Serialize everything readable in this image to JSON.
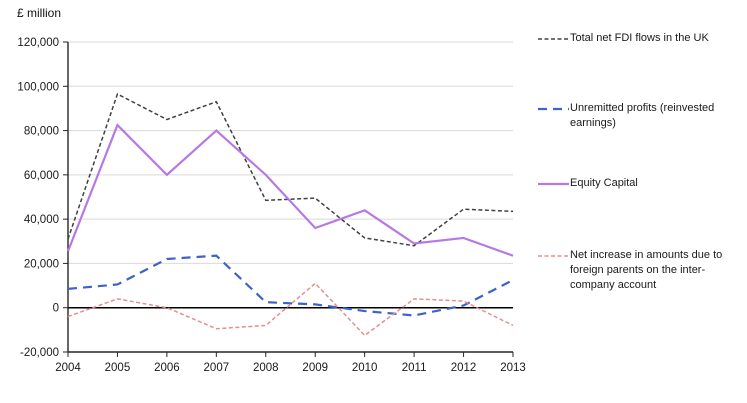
{
  "chart": {
    "y_axis_title": "£ million",
    "background": "#ffffff",
    "gridline_color": "#d9d9d9",
    "axis_color": "#262626",
    "zero_line_color": "#000000",
    "tick_label_color": "#1a1a1a"
  },
  "chart_data": {
    "type": "line",
    "categories": [
      "2004",
      "2005",
      "2006",
      "2007",
      "2008",
      "2009",
      "2010",
      "2011",
      "2012",
      "2013"
    ],
    "series": [
      {
        "name": "Total net FDI flows in the UK",
        "color": "#404040",
        "line_style": "dash-short",
        "values": [
          31000,
          96500,
          85000,
          93000,
          48500,
          49500,
          31500,
          28000,
          44500,
          43500
        ]
      },
      {
        "name": "Unremitted profits (reinvested earnings)",
        "color": "#3b63c9",
        "line_style": "dash-long",
        "values": [
          8500,
          10500,
          22000,
          23500,
          2500,
          1500,
          -1500,
          -3500,
          1000,
          12500
        ]
      },
      {
        "name": "Equity Capital",
        "color": "#b778e3",
        "line_style": "solid",
        "values": [
          25500,
          82500,
          60000,
          80000,
          60000,
          36000,
          44000,
          29000,
          31500,
          23500
        ]
      },
      {
        "name": "Net increase in amounts due to foreign parents on the inter-company account",
        "color": "#e58e8e",
        "line_style": "dash-short",
        "values": [
          -4000,
          4000,
          0,
          -9500,
          -8000,
          11000,
          -12500,
          4000,
          3000,
          -8000
        ]
      }
    ],
    "y_ticks": [
      {
        "value": -20000,
        "label": "-20,000"
      },
      {
        "value": 0,
        "label": "0"
      },
      {
        "value": 20000,
        "label": "20,000"
      },
      {
        "value": 40000,
        "label": "40,000"
      },
      {
        "value": 60000,
        "label": "60,000"
      },
      {
        "value": 80000,
        "label": "80,000"
      },
      {
        "value": 100000,
        "label": "100,000"
      },
      {
        "value": 120000,
        "label": "120,000"
      }
    ],
    "ylim": [
      -20000,
      120000
    ],
    "xlabel": "",
    "ylabel": "£ million",
    "title": "",
    "grid": "horizontal",
    "legend_position": "right"
  }
}
